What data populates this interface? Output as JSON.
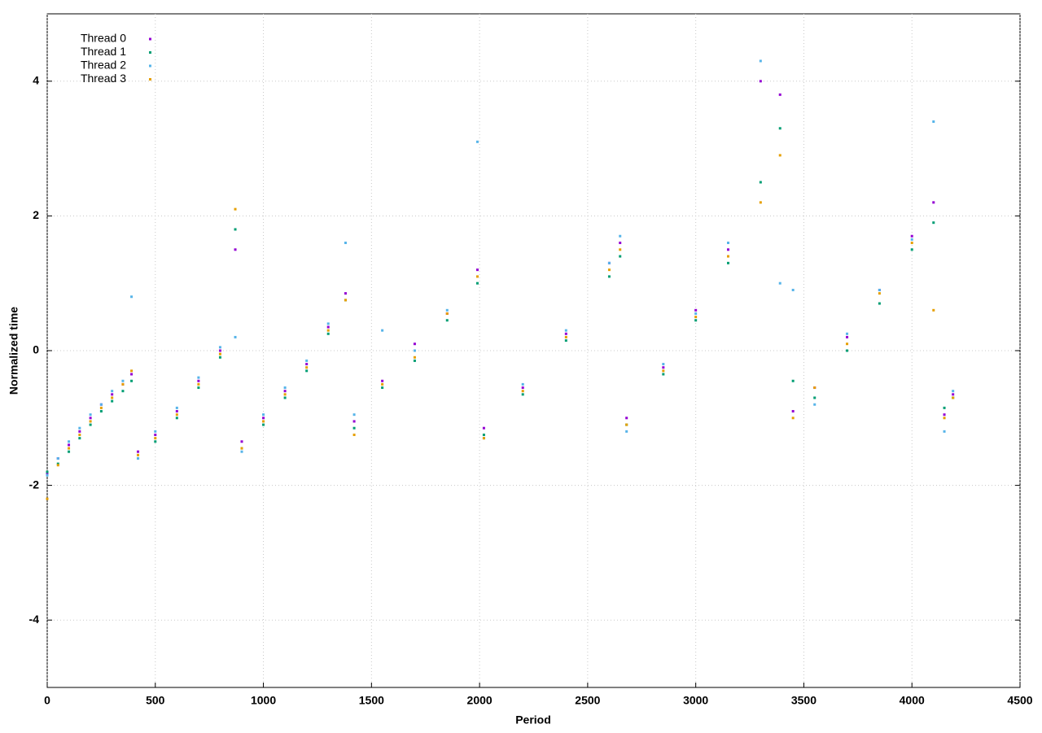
{
  "chart_data": {
    "type": "scatter",
    "xlabel": "Period",
    "ylabel": "Normalized time",
    "xlim": [
      0,
      4500
    ],
    "xticks": [
      0,
      500,
      1000,
      1500,
      2000,
      2500,
      3000,
      3500,
      4000,
      4500
    ],
    "ylim": [
      -5,
      5
    ],
    "yticks": [
      -4,
      -2,
      0,
      2,
      4
    ],
    "grid": true,
    "legend": "top-left",
    "x": [
      0,
      50,
      100,
      150,
      200,
      250,
      300,
      350,
      390,
      420,
      500,
      600,
      700,
      800,
      870,
      900,
      1000,
      1100,
      1200,
      1300,
      1380,
      1420,
      1550,
      1700,
      1850,
      1990,
      2020,
      2200,
      2400,
      2600,
      2650,
      2680,
      2850,
      3000,
      3150,
      3300,
      3390,
      3450,
      3550,
      3700,
      3850,
      4000,
      4100,
      4150,
      4190
    ],
    "series": [
      {
        "name": "Thread 0",
        "color": "#9400d3",
        "values": [
          -1.82,
          -1.6,
          -1.4,
          -1.2,
          -1.0,
          -0.8,
          -0.65,
          -0.5,
          -0.35,
          -1.5,
          -1.25,
          -0.9,
          -0.45,
          0.0,
          1.5,
          -1.35,
          -1.0,
          -0.6,
          -0.2,
          0.35,
          0.85,
          -1.05,
          -0.45,
          0.1,
          0.55,
          1.2,
          -1.15,
          -0.55,
          0.25,
          1.3,
          1.6,
          -1.0,
          -0.25,
          0.6,
          1.5,
          4.0,
          3.8,
          -0.9,
          -0.55,
          0.2,
          0.9,
          1.7,
          2.2,
          -0.95,
          -0.65
        ]
      },
      {
        "name": "Thread 1",
        "color": "#009e73",
        "values": [
          -1.8,
          -1.68,
          -1.5,
          -1.3,
          -1.1,
          -0.9,
          -0.75,
          -0.6,
          -0.45,
          -1.6,
          -1.35,
          -1.0,
          -0.55,
          -0.1,
          1.8,
          -1.45,
          -1.1,
          -0.7,
          -0.3,
          0.25,
          0.75,
          -1.15,
          -0.55,
          -0.15,
          0.45,
          1.0,
          -1.25,
          -0.65,
          0.15,
          1.1,
          1.4,
          -1.1,
          -0.35,
          0.45,
          1.3,
          2.5,
          3.3,
          -0.45,
          -0.7,
          0.0,
          0.7,
          1.5,
          1.9,
          -0.85,
          -0.7
        ]
      },
      {
        "name": "Thread 2",
        "color": "#56b4e9",
        "values": [
          -1.85,
          -1.6,
          -1.35,
          -1.15,
          -0.95,
          -0.8,
          -0.6,
          -0.45,
          0.8,
          -1.6,
          -1.2,
          -0.85,
          -0.4,
          0.05,
          0.2,
          -1.5,
          -0.95,
          -0.55,
          -0.15,
          0.4,
          1.6,
          -0.95,
          0.3,
          0.0,
          0.6,
          3.1,
          -1.3,
          -0.5,
          0.3,
          1.3,
          1.7,
          -1.2,
          -0.2,
          0.55,
          1.6,
          4.3,
          1.0,
          0.9,
          -0.8,
          0.25,
          0.9,
          1.65,
          3.4,
          -1.2,
          -0.6
        ]
      },
      {
        "name": "Thread 3",
        "color": "#e69f00",
        "values": [
          -2.2,
          -1.7,
          -1.45,
          -1.25,
          -1.05,
          -0.85,
          -0.7,
          -0.5,
          -0.3,
          -1.55,
          -1.3,
          -0.95,
          -0.5,
          -0.05,
          2.1,
          -1.45,
          -1.05,
          -0.65,
          -0.25,
          0.3,
          0.75,
          -1.25,
          -0.5,
          -0.1,
          0.55,
          1.1,
          -1.3,
          -0.6,
          0.2,
          1.2,
          1.5,
          -1.1,
          -0.3,
          0.5,
          1.4,
          2.2,
          2.9,
          -1.0,
          -0.55,
          0.1,
          0.85,
          1.6,
          0.6,
          -1.0,
          -0.7
        ]
      }
    ]
  }
}
